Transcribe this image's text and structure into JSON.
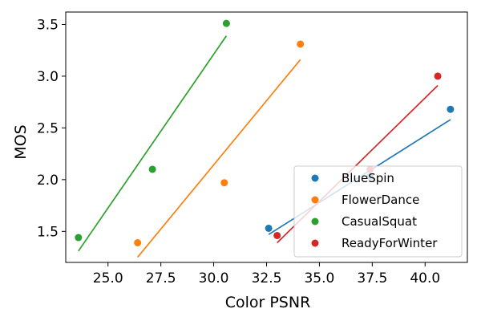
{
  "chart_data": {
    "type": "scatter",
    "xlabel": "Color PSNR",
    "ylabel": "MOS",
    "xlim": [
      23.0,
      42.0
    ],
    "ylim": [
      1.2,
      3.62
    ],
    "xticks": [
      25.0,
      27.5,
      30.0,
      32.5,
      35.0,
      37.5,
      40.0
    ],
    "xtick_labels": [
      "25.0",
      "27.5",
      "30.0",
      "32.5",
      "35.0",
      "37.5",
      "40.0"
    ],
    "yticks": [
      1.5,
      2.0,
      2.5,
      3.0,
      3.5
    ],
    "ytick_labels": [
      "1.5",
      "2.0",
      "2.5",
      "3.0",
      "3.5"
    ],
    "grid": false,
    "legend_position": "lower-right",
    "series": [
      {
        "name": "BlueSpin",
        "color": "#1f77b4",
        "points": [
          [
            32.6,
            1.53
          ],
          [
            37.4,
            2.03
          ],
          [
            41.2,
            2.68
          ]
        ],
        "fit_line": [
          [
            32.6,
            1.47
          ],
          [
            41.2,
            2.58
          ]
        ]
      },
      {
        "name": "FlowerDance",
        "color": "#ff7f0e",
        "points": [
          [
            26.4,
            1.39
          ],
          [
            30.5,
            1.97
          ],
          [
            34.1,
            3.31
          ]
        ],
        "fit_line": [
          [
            26.4,
            1.25
          ],
          [
            34.1,
            3.16
          ]
        ]
      },
      {
        "name": "CasualSquat",
        "color": "#2ca02c",
        "points": [
          [
            23.6,
            1.44
          ],
          [
            27.1,
            2.1
          ],
          [
            30.6,
            3.51
          ]
        ],
        "fit_line": [
          [
            23.6,
            1.31
          ],
          [
            30.6,
            3.39
          ]
        ]
      },
      {
        "name": "ReadyForWinter",
        "color": "#d62728",
        "points": [
          [
            33.0,
            1.46
          ],
          [
            37.4,
            2.1
          ],
          [
            40.6,
            3.0
          ]
        ],
        "fit_line": [
          [
            33.0,
            1.39
          ],
          [
            40.6,
            2.91
          ]
        ]
      }
    ]
  }
}
